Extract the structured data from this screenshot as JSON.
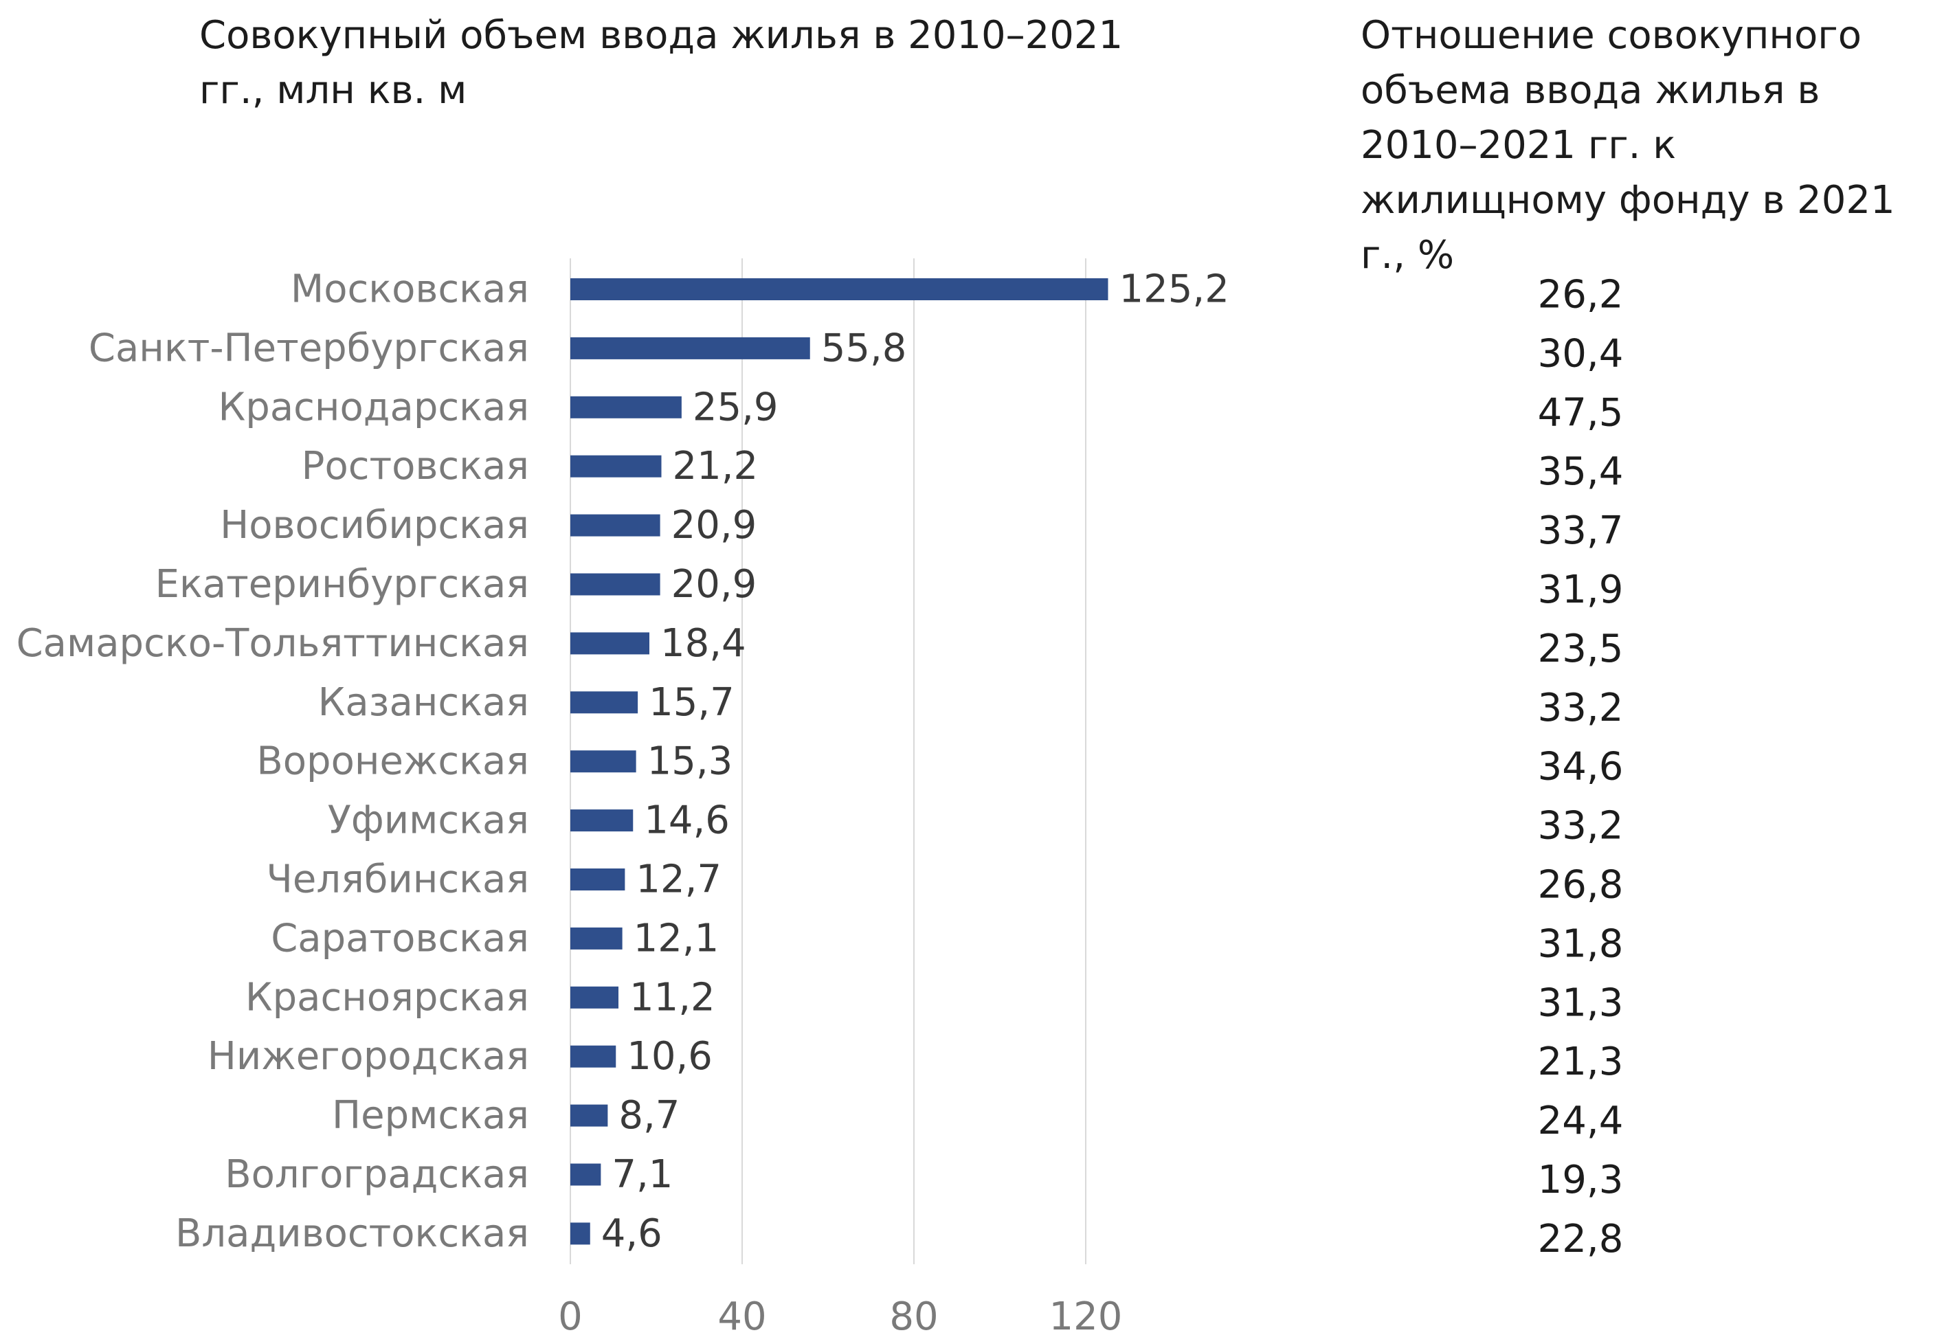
{
  "titles": {
    "left": "Совокупный объем ввода жилья в 2010–2021 гг., млн кв. м",
    "right": "Отношение совокупного объема ввода жилья в 2010–2021 гг. к жилищному фонду в 2021 г., %"
  },
  "colors": {
    "bar": "#2f4f8c",
    "grid": "#d9d9d9",
    "label": "#7a7a7a",
    "value": "#3a3a3a",
    "ratio": "#1c1c1c"
  },
  "chart_data": {
    "type": "bar",
    "orientation": "horizontal",
    "categories": [
      "Московская",
      "Санкт-Петербургская",
      "Краснодарская",
      "Ростовская",
      "Новосибирская",
      "Екатеринбургская",
      "Самарско-Тольяттинская",
      "Казанская",
      "Воронежская",
      "Уфимская",
      "Челябинская",
      "Саратовская",
      "Красноярская",
      "Нижегородская",
      "Пермская",
      "Волгоградская",
      "Владивостокская"
    ],
    "values": [
      125.2,
      55.8,
      25.9,
      21.2,
      20.9,
      20.9,
      18.4,
      15.7,
      15.3,
      14.6,
      12.7,
      12.1,
      11.2,
      10.6,
      8.7,
      7.1,
      4.6
    ],
    "value_labels": [
      "125,2",
      "55,8",
      "25,9",
      "21,2",
      "20,9",
      "20,9",
      "18,4",
      "15,7",
      "15,3",
      "14,6",
      "12,7",
      "12,1",
      "11,2",
      "10,6",
      "8,7",
      "7,1",
      "4,6"
    ],
    "ratio_labels": [
      "26,2",
      "30,4",
      "47,5",
      "35,4",
      "33,7",
      "31,9",
      "23,5",
      "33,2",
      "34,6",
      "33,2",
      "26,8",
      "31,8",
      "31,3",
      "21,3",
      "24,4",
      "19,3",
      "22,8"
    ],
    "xlim": [
      0,
      140
    ],
    "xticks": [
      0,
      40,
      80,
      120
    ],
    "xtick_labels": [
      "0",
      "40",
      "80",
      "120"
    ],
    "grid": true
  }
}
